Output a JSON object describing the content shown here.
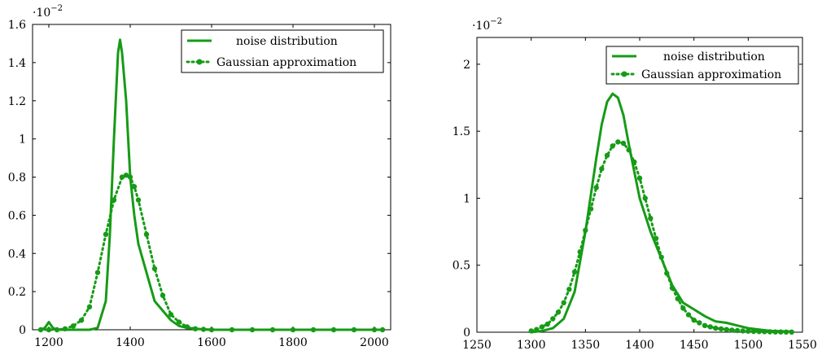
{
  "colors": {
    "series": "#169b16",
    "axis": "#000000",
    "background": "#ffffff"
  },
  "chart_data": [
    {
      "type": "line",
      "scale_label": {
        "base": "·10",
        "exponent": "−2"
      },
      "xlim": [
        1160,
        2040
      ],
      "ylim": [
        0,
        1.6
      ],
      "xticks": [
        1200,
        1400,
        1600,
        1800,
        2000
      ],
      "xtick_labels": [
        "1200",
        "1400",
        "1600",
        "1800",
        "2000"
      ],
      "yticks": [
        0,
        0.2,
        0.4,
        0.6,
        0.8,
        1,
        1.2,
        1.4,
        1.6
      ],
      "ytick_labels": [
        "0",
        "0.2",
        "0.4",
        "0.6",
        "0.8",
        "1",
        "1.2",
        "1.4",
        "1.6"
      ],
      "grid": false,
      "legend_position": "top-right",
      "series": [
        {
          "name": "noise distribution",
          "style": "solid",
          "x": [
            1180,
            1190,
            1200,
            1210,
            1220,
            1240,
            1260,
            1280,
            1300,
            1320,
            1340,
            1350,
            1360,
            1370,
            1375,
            1380,
            1390,
            1400,
            1410,
            1420,
            1440,
            1460,
            1480,
            1500,
            1520,
            1540,
            1560,
            1580,
            1600,
            1800,
            2000,
            2020
          ],
          "y": [
            0,
            0.01,
            0.04,
            0.01,
            0,
            0,
            0,
            0,
            0,
            0.01,
            0.15,
            0.5,
            1.0,
            1.45,
            1.52,
            1.45,
            1.2,
            0.8,
            0.6,
            0.45,
            0.3,
            0.15,
            0.1,
            0.05,
            0.02,
            0.01,
            0.005,
            0.002,
            0,
            0,
            0,
            0
          ]
        },
        {
          "name": "Gaussian approximation",
          "style": "dotted-markers",
          "x": [
            1180,
            1200,
            1220,
            1240,
            1260,
            1280,
            1300,
            1320,
            1340,
            1360,
            1380,
            1390,
            1400,
            1410,
            1420,
            1440,
            1460,
            1480,
            1500,
            1520,
            1540,
            1560,
            1580,
            1600,
            1650,
            1700,
            1750,
            1800,
            1850,
            1900,
            1950,
            2000,
            2020
          ],
          "y": [
            0,
            0,
            0,
            0.005,
            0.02,
            0.05,
            0.12,
            0.3,
            0.5,
            0.68,
            0.8,
            0.81,
            0.8,
            0.75,
            0.68,
            0.5,
            0.32,
            0.18,
            0.08,
            0.04,
            0.015,
            0.005,
            0.002,
            0,
            0,
            0,
            0,
            0,
            0,
            0,
            0,
            0,
            0
          ]
        }
      ]
    },
    {
      "type": "line",
      "scale_label": {
        "base": "·10",
        "exponent": "−2"
      },
      "xlim": [
        1250,
        1550
      ],
      "ylim": [
        0,
        2.2
      ],
      "xticks": [
        1250,
        1300,
        1350,
        1400,
        1450,
        1500,
        1550
      ],
      "xtick_labels": [
        "1250",
        "1300",
        "1350",
        "1400",
        "1450",
        "1500",
        "1550"
      ],
      "yticks": [
        0,
        0.5,
        1,
        1.5,
        2
      ],
      "ytick_labels": [
        "0",
        "0.5",
        "1",
        "1.5",
        "2"
      ],
      "grid": false,
      "legend_position": "top-right",
      "series": [
        {
          "name": "noise distribution",
          "style": "solid",
          "x": [
            1300,
            1310,
            1320,
            1330,
            1340,
            1350,
            1360,
            1365,
            1370,
            1375,
            1380,
            1385,
            1390,
            1395,
            1400,
            1410,
            1420,
            1430,
            1440,
            1450,
            1460,
            1470,
            1480,
            1490,
            1500,
            1520,
            1540
          ],
          "y": [
            0,
            0.01,
            0.03,
            0.1,
            0.3,
            0.75,
            1.3,
            1.55,
            1.72,
            1.78,
            1.75,
            1.62,
            1.4,
            1.2,
            1.0,
            0.75,
            0.55,
            0.35,
            0.22,
            0.17,
            0.12,
            0.08,
            0.07,
            0.05,
            0.03,
            0.01,
            0.005
          ]
        },
        {
          "name": "Gaussian approximation",
          "style": "dotted-markers",
          "x": [
            1300,
            1305,
            1310,
            1315,
            1320,
            1325,
            1330,
            1335,
            1340,
            1345,
            1350,
            1355,
            1360,
            1365,
            1370,
            1375,
            1380,
            1385,
            1390,
            1395,
            1400,
            1405,
            1410,
            1415,
            1420,
            1425,
            1430,
            1435,
            1440,
            1445,
            1450,
            1455,
            1460,
            1465,
            1470,
            1475,
            1480,
            1485,
            1490,
            1495,
            1500,
            1505,
            1510,
            1515,
            1520,
            1525,
            1530,
            1535,
            1540
          ],
          "y": [
            0.01,
            0.02,
            0.04,
            0.06,
            0.1,
            0.15,
            0.22,
            0.32,
            0.45,
            0.6,
            0.76,
            0.92,
            1.08,
            1.22,
            1.32,
            1.39,
            1.42,
            1.41,
            1.36,
            1.27,
            1.15,
            1.0,
            0.85,
            0.7,
            0.56,
            0.44,
            0.33,
            0.25,
            0.18,
            0.13,
            0.09,
            0.07,
            0.05,
            0.04,
            0.03,
            0.025,
            0.02,
            0.015,
            0.012,
            0.01,
            0.008,
            0.006,
            0.005,
            0.004,
            0.003,
            0.002,
            0.002,
            0.001,
            0.001
          ]
        }
      ]
    }
  ]
}
